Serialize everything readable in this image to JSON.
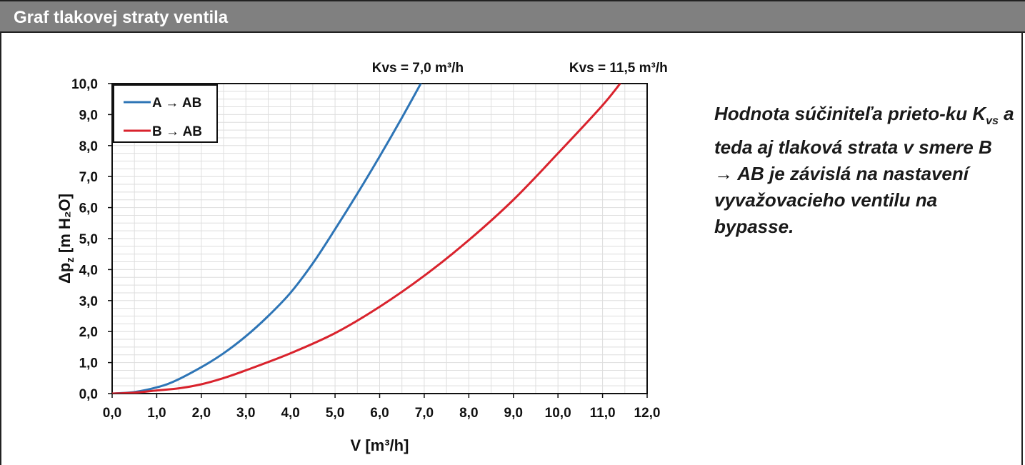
{
  "header": {
    "title": "Graf tlakovej straty ventila"
  },
  "note": {
    "part1": "Hodnota súčiniteľa prieto-ku K",
    "sub": "vs",
    "part2": " a teda aj tlaková strata v smere B → AB je závislá na nastavení vyvažovacieho ventilu na bypasse."
  },
  "chart_data": {
    "type": "line",
    "xlabel": "V [m³/h]",
    "ylabel": "Δp",
    "ylabel_sub": "z",
    "ylabel_unit": " [m H₂O]",
    "xlim": [
      0,
      12
    ],
    "ylim": [
      0,
      10
    ],
    "x_ticks": [
      "0,0",
      "1,0",
      "2,0",
      "3,0",
      "4,0",
      "5,0",
      "6,0",
      "7,0",
      "8,0",
      "9,0",
      "10,0",
      "11,0",
      "12,0"
    ],
    "y_ticks": [
      "0,0",
      "1,0",
      "2,0",
      "3,0",
      "4,0",
      "5,0",
      "6,0",
      "7,0",
      "8,0",
      "9,0",
      "10,0"
    ],
    "grid": true,
    "legend_position": "top-left",
    "annotations": [
      {
        "text": "Kvs = 7,0 m³/h",
        "x": 7.0
      },
      {
        "text": "Kvs = 11,5 m³/h",
        "x": 11.5
      }
    ],
    "series": [
      {
        "name": "A → AB",
        "color": "#2e75b6",
        "x": [
          0,
          0.5,
          1.0,
          1.4,
          2.0,
          2.5,
          3.0,
          3.5,
          4.0,
          4.5,
          5.0,
          5.5,
          6.0,
          6.5,
          7.0
        ],
        "y": [
          0,
          0.05,
          0.2,
          0.4,
          0.85,
          1.3,
          1.85,
          2.5,
          3.25,
          4.2,
          5.3,
          6.45,
          7.65,
          8.9,
          10.2
        ]
      },
      {
        "name": "B → AB",
        "color": "#d9232d",
        "x": [
          0,
          0.5,
          1.0,
          1.5,
          2.0,
          2.5,
          3.0,
          4.0,
          5.0,
          6.0,
          7.0,
          8.0,
          9.0,
          10.0,
          11.0,
          11.5
        ],
        "y": [
          0,
          0.03,
          0.1,
          0.17,
          0.3,
          0.5,
          0.75,
          1.3,
          1.95,
          2.8,
          3.8,
          4.95,
          6.25,
          7.75,
          9.3,
          10.2
        ]
      }
    ]
  }
}
